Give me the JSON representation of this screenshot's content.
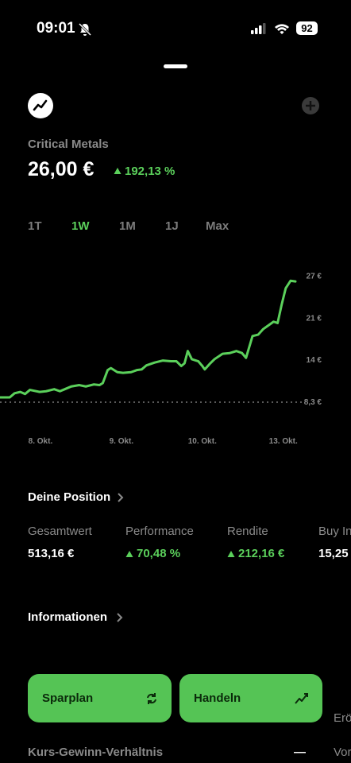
{
  "status_bar": {
    "time": "09:01",
    "battery": "92"
  },
  "header": {
    "name": "Critical Metals",
    "price": "26,00 €",
    "change": "192,13 %"
  },
  "tabs": [
    "1T",
    "1W",
    "1M",
    "1J",
    "Max"
  ],
  "chart_data": {
    "type": "line",
    "x": [
      0,
      0.12,
      0.18,
      0.25,
      0.31,
      0.37,
      0.49,
      0.57,
      0.67,
      0.74,
      0.8,
      0.88,
      0.98,
      1.06,
      1.16,
      1.23,
      1.27,
      1.33,
      1.37,
      1.45,
      1.52,
      1.62,
      1.69,
      1.75,
      1.81,
      1.91,
      2.01,
      2.11,
      2.18,
      2.24,
      2.28,
      2.32,
      2.37,
      2.45,
      2.5,
      2.53,
      2.59,
      2.65,
      2.75,
      2.84,
      2.92,
      2.99,
      3.04,
      3.12,
      3.19,
      3.25,
      3.31,
      3.38,
      3.43,
      3.48,
      3.53,
      3.59,
      3.65
    ],
    "series": [
      {
        "color": "#5bd05b",
        "values": [
          9.0,
          9.0,
          9.6,
          9.8,
          9.5,
          10.1,
          9.8,
          9.9,
          10.2,
          9.9,
          10.2,
          10.6,
          10.8,
          10.6,
          10.9,
          10.8,
          11.1,
          13.0,
          13.3,
          12.7,
          12.6,
          12.7,
          13.0,
          13.1,
          13.7,
          14.1,
          14.4,
          14.3,
          14.3,
          13.6,
          14.0,
          15.8,
          14.6,
          14.3,
          13.6,
          13.1,
          13.9,
          14.6,
          15.4,
          15.5,
          15.8,
          15.5,
          14.8,
          18.0,
          18.2,
          19.0,
          19.5,
          20.1,
          19.9,
          22.6,
          25.0,
          26.1,
          26.0
        ]
      }
    ],
    "xlim": [
      0,
      3.65
    ],
    "xticks": [
      {
        "value": 0.5,
        "label": "8. Okt."
      },
      {
        "value": 1.5,
        "label": "9. Okt."
      },
      {
        "value": 2.5,
        "label": "10. Okt."
      },
      {
        "value": 3.5,
        "label": "13. Okt."
      }
    ],
    "ylim": [
      5.5,
      28
    ],
    "yticks": [
      {
        "value": 8.3,
        "label": "8,3 €"
      },
      {
        "value": 14.45,
        "label": "14 €"
      },
      {
        "value": 20.6,
        "label": "21 €"
      },
      {
        "value": 26.75,
        "label": "27 €"
      }
    ],
    "reference_line": 8.3
  },
  "position": {
    "title": "Deine Position",
    "stats": [
      {
        "label": "Gesamtwert",
        "value": "513,16 €"
      },
      {
        "label": "Performance",
        "value": "70,48 %"
      },
      {
        "label": "Rendite",
        "value": "212,16 €"
      },
      {
        "label": "Buy In",
        "value": "15,25"
      }
    ]
  },
  "info": {
    "title": "Informationen",
    "row_label": "Kurs-Gewinn-Verhältnis",
    "row_value": "—",
    "right_top": "Erö",
    "right_bottom": "Vor"
  },
  "buttons": [
    "Sparplan",
    "Handeln"
  ]
}
